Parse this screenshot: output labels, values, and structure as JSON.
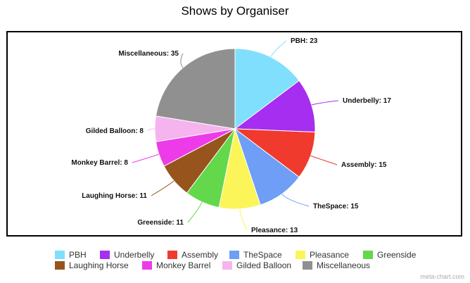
{
  "chart_data": {
    "type": "pie",
    "title": "Shows by Organiser",
    "slices": [
      {
        "name": "PBH",
        "value": 23,
        "label": "PBH: 23",
        "color": "#7fdffc"
      },
      {
        "name": "Underbelly",
        "value": 17,
        "label": "Underbelly: 17",
        "color": "#a52ef0"
      },
      {
        "name": "Assembly",
        "value": 15,
        "label": "Assembly: 15",
        "color": "#f03a2e"
      },
      {
        "name": "TheSpace",
        "value": 15,
        "label": "TheSpace: 15",
        "color": "#6e9ef5"
      },
      {
        "name": "Pleasance",
        "value": 13,
        "label": "Pleasance: 13",
        "color": "#fbf55a"
      },
      {
        "name": "Greenside",
        "value": 11,
        "label": "Greenside: 11",
        "color": "#63d84b"
      },
      {
        "name": "Laughing Horse",
        "value": 11,
        "label": "Laughing Horse: 11",
        "color": "#97541c"
      },
      {
        "name": "Monkey Barrel",
        "value": 8,
        "label": "Monkey Barrel: 8",
        "color": "#ee3bea"
      },
      {
        "name": "Gilded Balloon",
        "value": 8,
        "label": "Gilded Balloon: 8",
        "color": "#f5b4ee"
      },
      {
        "name": "Miscellaneous",
        "value": 35,
        "label": "Miscellaneous: 35",
        "color": "#909090"
      }
    ],
    "legend_placement": "bottom"
  },
  "credit": "meta-chart.com"
}
